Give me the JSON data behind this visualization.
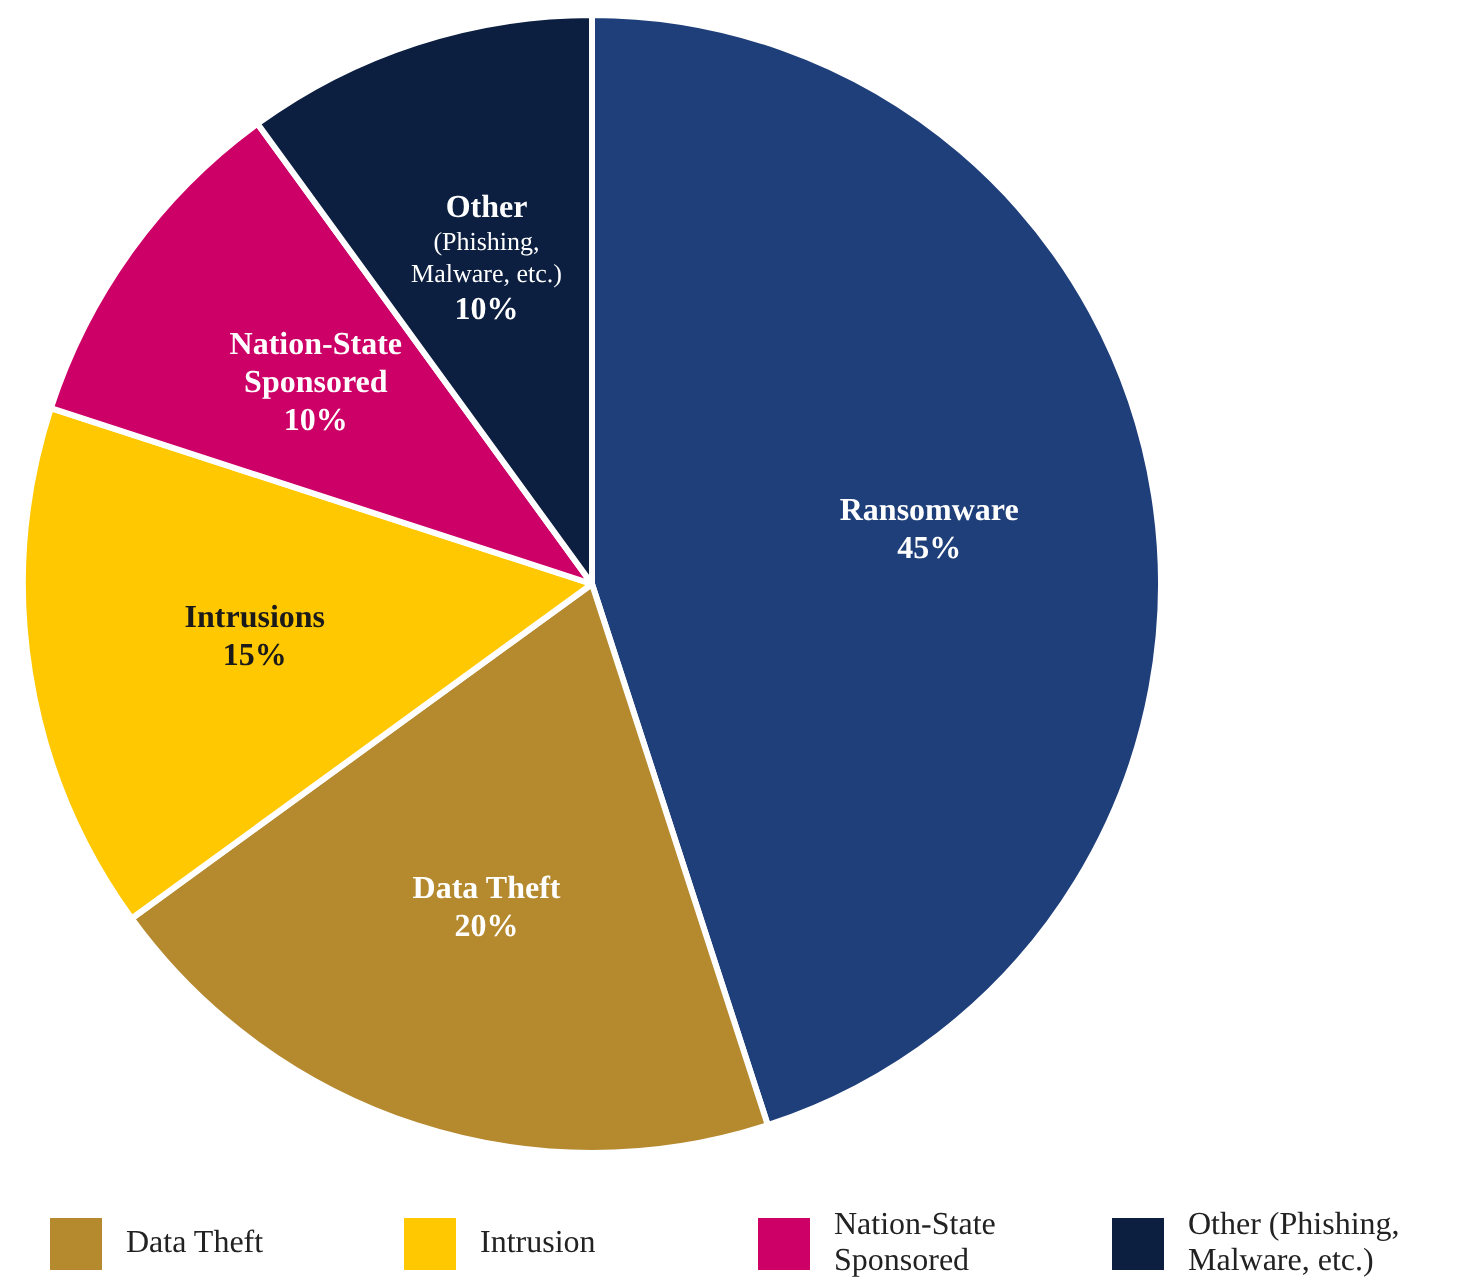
{
  "chart_data": {
    "type": "pie",
    "categories": [
      "Ransomware",
      "Data Theft",
      "Intrusions",
      "Nation-State Sponsored",
      "Other (Phishing, Malware, etc.)"
    ],
    "values": [
      45,
      20,
      15,
      10,
      10
    ],
    "value_labels": [
      "45%",
      "20%",
      "15%",
      "10%",
      "10%"
    ],
    "colors": [
      "#1f3f7a",
      "#b5892e",
      "#ffc800",
      "#cc0066",
      "#0c1f40"
    ],
    "legend": false,
    "annotations": [
      "Data Theft",
      "Intrusion",
      "Nation-State Sponsored",
      "Other (Phishing, Malware, etc.)"
    ]
  }
}
